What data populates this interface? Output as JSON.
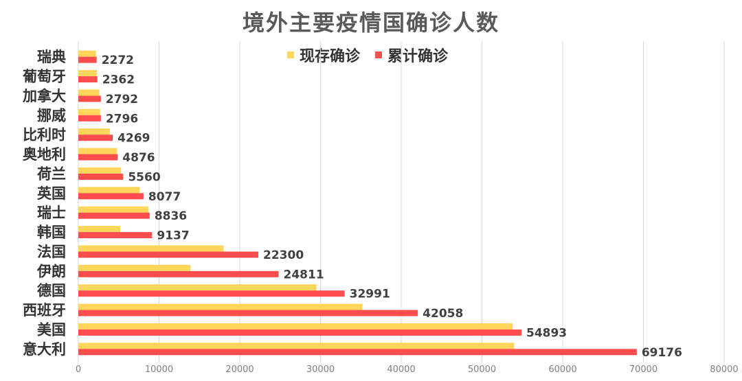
{
  "chart_data": {
    "type": "bar",
    "orientation": "horizontal",
    "title": "境外主要疫情国确诊人数",
    "categories": [
      "意大利",
      "美国",
      "西班牙",
      "德国",
      "伊朗",
      "法国",
      "韩国",
      "瑞士",
      "英国",
      "荷兰",
      "奥地利",
      "比利时",
      "挪威",
      "加拿大",
      "葡萄牙",
      "瑞典"
    ],
    "series": [
      {
        "name": "现存确诊",
        "color": "#FFD55A",
        "values": [
          54000,
          53800,
          35200,
          29500,
          13900,
          18000,
          5200,
          8700,
          7600,
          5300,
          4800,
          3900,
          2700,
          2600,
          2300,
          2200
        ]
      },
      {
        "name": "累计确诊",
        "color": "#FF4C4C",
        "values": [
          69176,
          54893,
          42058,
          32991,
          24811,
          22300,
          9137,
          8836,
          8077,
          5560,
          4876,
          4269,
          2796,
          2792,
          2362,
          2272
        ]
      }
    ],
    "data_labels": [
      "69176",
      "54893",
      "42058",
      "32991",
      "24811",
      "22300",
      "9137",
      "8836",
      "8077",
      "5560",
      "4876",
      "4269",
      "2796",
      "2792",
      "2362",
      "2272"
    ],
    "x_ticks": [
      "0",
      "10000",
      "20000",
      "30000",
      "40000",
      "50000",
      "60000",
      "70000",
      "80000"
    ],
    "xlim": [
      0,
      80000
    ],
    "grid": true,
    "legend_position": "top-center"
  }
}
